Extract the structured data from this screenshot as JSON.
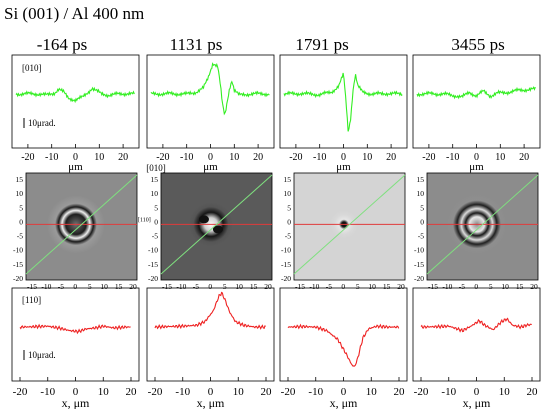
{
  "figure_title": "Si (001) / Al  400 nm",
  "time_labels": [
    "-164 ps",
    "1131 ps",
    "1791 ps",
    "3455 ps"
  ],
  "top_row": {
    "direction_label": "[010]",
    "scale_label": "10μrad.",
    "x_ticks": [
      "-20",
      "-10",
      "0",
      "10",
      "20"
    ],
    "xlabel": "μm",
    "trace_color": "#33ee22",
    "profiles": [
      {
        "name": "-164",
        "points": [
          [
            -25,
            0
          ],
          [
            -20,
            0.02
          ],
          [
            -15,
            0
          ],
          [
            -12,
            -0.05
          ],
          [
            -9,
            0.05
          ],
          [
            -7,
            0.25
          ],
          [
            -5,
            0.1
          ],
          [
            -3,
            -0.2
          ],
          [
            0,
            -0.3
          ],
          [
            3,
            -0.15
          ],
          [
            5,
            0.05
          ],
          [
            7,
            0.3
          ],
          [
            9,
            0.15
          ],
          [
            11,
            0
          ],
          [
            14,
            -0.05
          ],
          [
            18,
            0
          ],
          [
            22,
            0.03
          ],
          [
            25,
            0
          ]
        ]
      },
      {
        "name": "1131",
        "points": [
          [
            -25,
            0
          ],
          [
            -18,
            0.02
          ],
          [
            -10,
            0
          ],
          [
            -6,
            0.1
          ],
          [
            -3,
            0.3
          ],
          [
            -1,
            0.8
          ],
          [
            1,
            1.55
          ],
          [
            3,
            1.4
          ],
          [
            4,
            0.6
          ],
          [
            5,
            -0.5
          ],
          [
            6,
            -1.1
          ],
          [
            7,
            -0.4
          ],
          [
            8,
            0.3
          ],
          [
            9,
            0.7
          ],
          [
            10,
            0.2
          ],
          [
            12,
            -0.05
          ],
          [
            16,
            0
          ],
          [
            22,
            0.02
          ],
          [
            25,
            0
          ]
        ]
      },
      {
        "name": "1791",
        "points": [
          [
            -25,
            0
          ],
          [
            -18,
            0.03
          ],
          [
            -10,
            -0.03
          ],
          [
            -5,
            0.1
          ],
          [
            -2,
            0.4
          ],
          [
            0,
            1.0
          ],
          [
            1,
            -0.3
          ],
          [
            2,
            -1.9
          ],
          [
            3,
            -1.2
          ],
          [
            4,
            0.2
          ],
          [
            5,
            1.0
          ],
          [
            6,
            0.4
          ],
          [
            8,
            0.1
          ],
          [
            12,
            0
          ],
          [
            18,
            0.03
          ],
          [
            25,
            0
          ]
        ]
      },
      {
        "name": "3455",
        "points": [
          [
            -25,
            0
          ],
          [
            -18,
            0.02
          ],
          [
            -12,
            -0.02
          ],
          [
            -6,
            -0.15
          ],
          [
            -3,
            0.1
          ],
          [
            0,
            -0.1
          ],
          [
            3,
            0.15
          ],
          [
            6,
            -0.1
          ],
          [
            9,
            0.05
          ],
          [
            14,
            0.1
          ],
          [
            18,
            0.2
          ],
          [
            25,
            0.25
          ]
        ]
      }
    ]
  },
  "middle_row": {
    "direction_label": "[010]",
    "axis_label": "[110]",
    "y_ticks": [
      "15",
      "10",
      "5",
      "0",
      "-5",
      "-10",
      "-15",
      "-20"
    ],
    "x_ticks": [
      "-15",
      "-10",
      "-5",
      "0",
      "5",
      "10",
      "15",
      "20"
    ],
    "diagonal_color": "#7fe07f",
    "horizontal_color": "#e03b3b",
    "maps": [
      {
        "name": "-164",
        "pattern": "ring"
      },
      {
        "name": "1131",
        "pattern": "dipole"
      },
      {
        "name": "1791",
        "pattern": "spot"
      },
      {
        "name": "3455",
        "pattern": "ring-large"
      }
    ]
  },
  "bottom_row": {
    "direction_label": "[110]",
    "scale_label": "10μrad.",
    "x_ticks": [
      "-20",
      "-10",
      "0",
      "10",
      "20"
    ],
    "xlabel": "x, μm",
    "trace_color": "#ee2222",
    "profiles": [
      {
        "name": "-164",
        "points": [
          [
            -20,
            0
          ],
          [
            -15,
            0.02
          ],
          [
            -10,
            0.05
          ],
          [
            -6,
            -0.05
          ],
          [
            -2,
            -0.2
          ],
          [
            1,
            -0.25
          ],
          [
            4,
            -0.1
          ],
          [
            7,
            -0.05
          ],
          [
            10,
            0.05
          ],
          [
            14,
            -0.05
          ],
          [
            18,
            0
          ],
          [
            20,
            0
          ]
        ]
      },
      {
        "name": "1131",
        "points": [
          [
            -20,
            0
          ],
          [
            -15,
            0.03
          ],
          [
            -10,
            0.05
          ],
          [
            -5,
            0.1
          ],
          [
            -2,
            0.3
          ],
          [
            1,
            0.9
          ],
          [
            3,
            1.7
          ],
          [
            4,
            1.9
          ],
          [
            5,
            1.6
          ],
          [
            7,
            0.8
          ],
          [
            9,
            0.3
          ],
          [
            12,
            0.1
          ],
          [
            16,
            0
          ],
          [
            20,
            0
          ]
        ]
      },
      {
        "name": "1791",
        "points": [
          [
            -20,
            0
          ],
          [
            -15,
            0.03
          ],
          [
            -10,
            0
          ],
          [
            -6,
            -0.2
          ],
          [
            -2,
            -0.7
          ],
          [
            1,
            -1.5
          ],
          [
            3,
            -2.1
          ],
          [
            4,
            -2.2
          ],
          [
            5,
            -1.8
          ],
          [
            7,
            -0.6
          ],
          [
            9,
            -0.1
          ],
          [
            12,
            0.05
          ],
          [
            16,
            0
          ],
          [
            20,
            0
          ]
        ]
      },
      {
        "name": "3455",
        "points": [
          [
            -20,
            0
          ],
          [
            -15,
            0.02
          ],
          [
            -10,
            0.05
          ],
          [
            -5,
            -0.2
          ],
          [
            -2,
            0.05
          ],
          [
            1,
            0.35
          ],
          [
            3,
            0.1
          ],
          [
            6,
            -0.15
          ],
          [
            9,
            0.3
          ],
          [
            11,
            0.45
          ],
          [
            13,
            0.1
          ],
          [
            16,
            0
          ],
          [
            18,
            0.1
          ],
          [
            20,
            0.15
          ]
        ]
      }
    ]
  }
}
